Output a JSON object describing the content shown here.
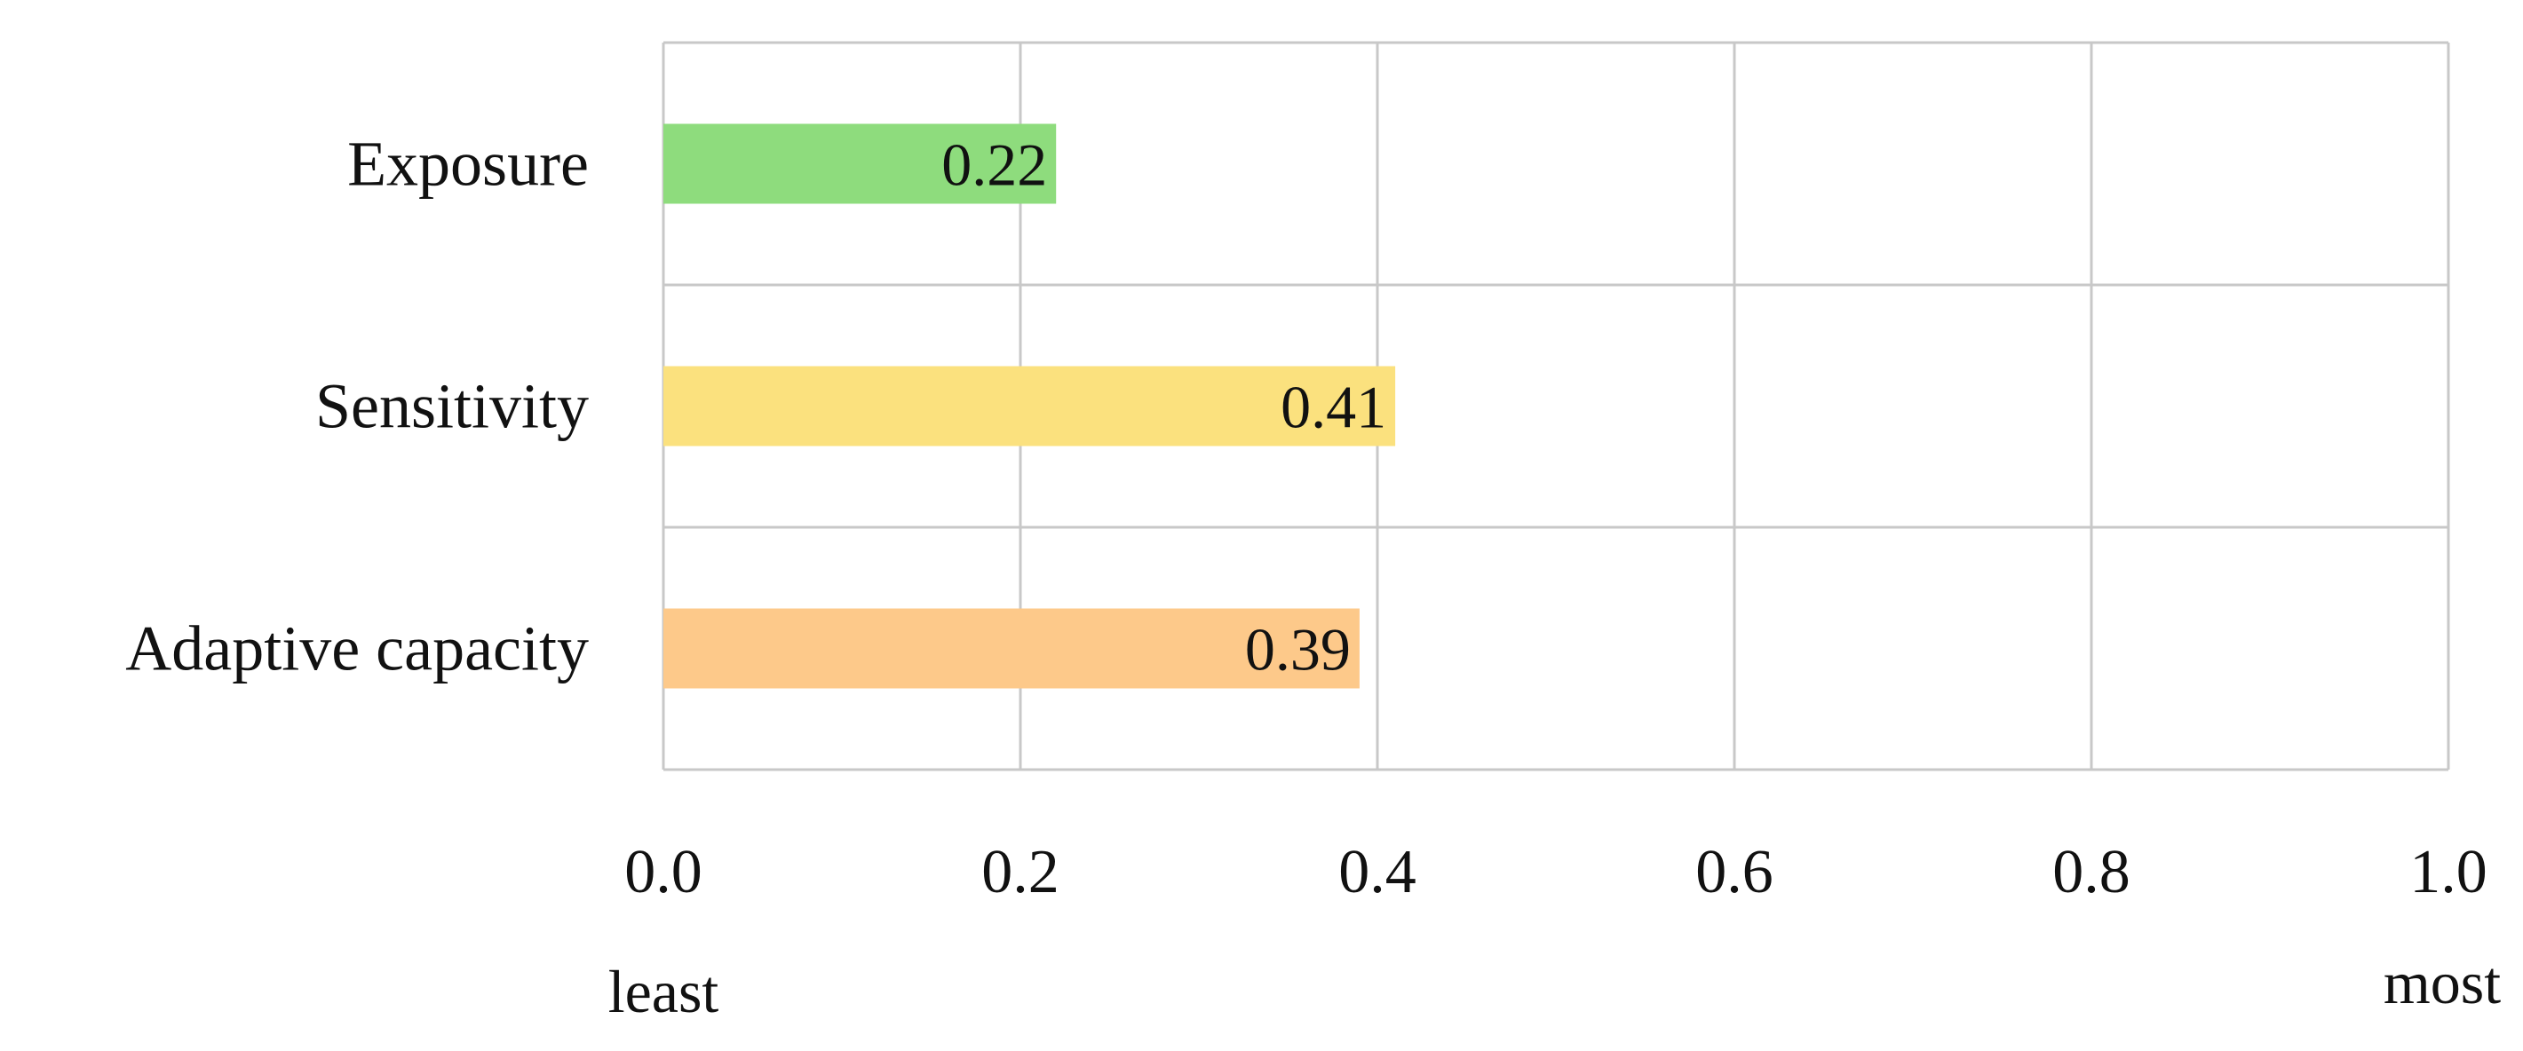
{
  "chart_data": {
    "type": "bar",
    "orientation": "horizontal",
    "categories": [
      "Exposure",
      "Sensitivity",
      "Adaptive capacity"
    ],
    "values": [
      0.22,
      0.41,
      0.39
    ],
    "value_labels": [
      "0.22",
      "0.41",
      "0.39"
    ],
    "colors": [
      "#8edc7d",
      "#fbe17e",
      "#fdc98a"
    ],
    "xlim": [
      0.0,
      1.0
    ],
    "xticks": [
      0.0,
      0.2,
      0.4,
      0.6,
      0.8,
      1.0
    ],
    "xtick_labels": [
      "0.0",
      "0.2",
      "0.4",
      "0.6",
      "0.8",
      "1.0"
    ],
    "scale_labels": {
      "low": "least",
      "high": "most"
    },
    "grid": true,
    "legend": "none"
  }
}
